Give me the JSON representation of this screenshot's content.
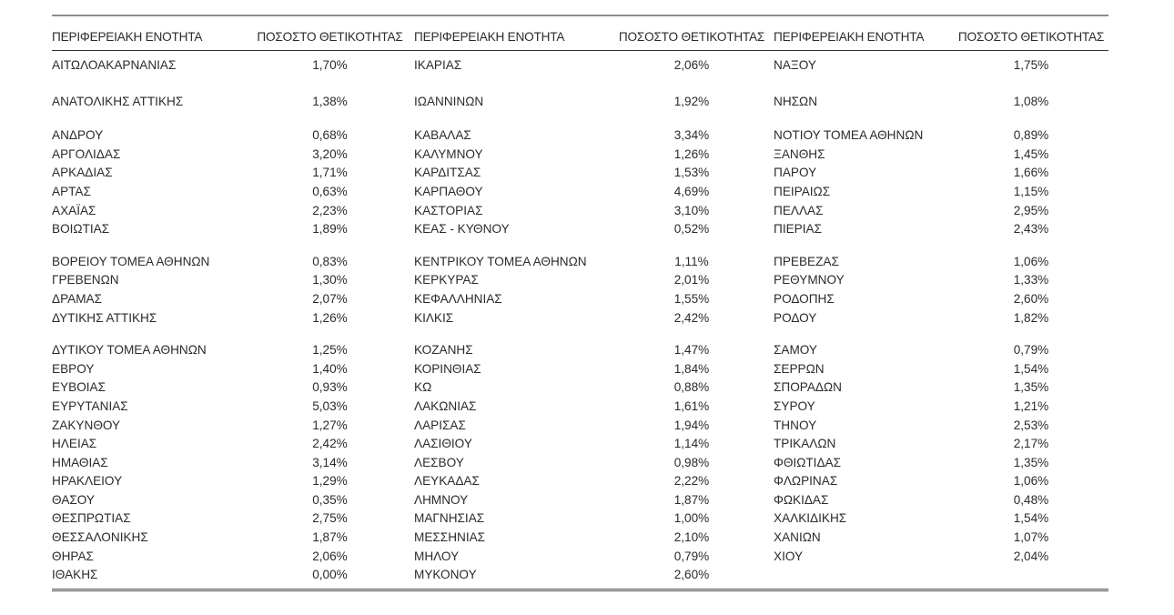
{
  "table": {
    "headers": [
      "ΠΕΡΙΦΕΡΕΙΑΚΗ ΕΝΟΤΗΤΑ",
      "ΠΟΣΟΣΤΟ ΘΕΤΙΚΟΤΗΤΑΣ",
      "ΠΕΡΙΦΕΡΕΙΑΚΗ ΕΝΟΤΗΤΑ",
      "ΠΟΣΟΣΤΟ ΘΕΤΙΚΟΤΗΤΑΣ",
      "ΠΕΡΙΦΕΡΕΙΑΚΗ ΕΝΟΤΗΤΑ",
      "ΠΟΣΟΣΤΟ ΘΕΤΙΚΟΤΗΤΑΣ"
    ],
    "rows": [
      [
        "ΑΙΤΩΛΟΑΚΑΡΝΑΝΙΑΣ",
        "1,70%",
        "ΙΚΑΡΙΑΣ",
        "2,06%",
        "ΝΑΞΟΥ",
        "1,75%"
      ],
      [
        "ΑΝΑΤΟΛΙΚΗΣ ΑΤΤΙΚΗΣ",
        "1,38%",
        "ΙΩΑΝΝΙΝΩΝ",
        "1,92%",
        "ΝΗΣΩΝ",
        "1,08%"
      ],
      [
        "ΑΝΔΡΟΥ",
        "0,68%",
        "ΚΑΒΑΛΑΣ",
        "3,34%",
        "ΝΟΤΙΟΥ ΤΟΜΕΑ ΑΘΗΝΩΝ",
        "0,89%"
      ],
      [
        "ΑΡΓΟΛΙΔΑΣ",
        "3,20%",
        "ΚΑΛΥΜΝΟΥ",
        "1,26%",
        "ΞΑΝΘΗΣ",
        "1,45%"
      ],
      [
        "ΑΡΚΑΔΙΑΣ",
        "1,71%",
        "ΚΑΡΔΙΤΣΑΣ",
        "1,53%",
        "ΠΑΡΟΥ",
        "1,66%"
      ],
      [
        "ΑΡΤΑΣ",
        "0,63%",
        "ΚΑΡΠΑΘΟΥ",
        "4,69%",
        "ΠΕΙΡΑΙΩΣ",
        "1,15%"
      ],
      [
        "ΑΧΑΪΑΣ",
        "2,23%",
        "ΚΑΣΤΟΡΙΑΣ",
        "3,10%",
        "ΠΕΛΛΑΣ",
        "2,95%"
      ],
      [
        "ΒΟΙΩΤΙΑΣ",
        "1,89%",
        "ΚΕΑΣ - ΚΥΘΝΟΥ",
        "0,52%",
        "ΠΙΕΡΙΑΣ",
        "2,43%"
      ],
      [
        "ΒΟΡΕΙΟΥ ΤΟΜΕΑ ΑΘΗΝΩΝ",
        "0,83%",
        "ΚΕΝΤΡΙΚΟΥ ΤΟΜΕΑ ΑΘΗΝΩΝ",
        "1,11%",
        "ΠΡΕΒΕΖΑΣ",
        "1,06%"
      ],
      [
        "ΓΡΕΒΕΝΩΝ",
        "1,30%",
        "ΚΕΡΚΥΡΑΣ",
        "2,01%",
        "ΡΕΘΥΜΝΟΥ",
        "1,33%"
      ],
      [
        "ΔΡΑΜΑΣ",
        "2,07%",
        "ΚΕΦΑΛΛΗΝΙΑΣ",
        "1,55%",
        "ΡΟΔΟΠΗΣ",
        "2,60%"
      ],
      [
        "ΔΥΤΙΚΗΣ ΑΤΤΙΚΗΣ",
        "1,26%",
        "ΚΙΛΚΙΣ",
        "2,42%",
        "ΡΟΔΟΥ",
        "1,82%"
      ],
      [
        "ΔΥΤΙΚΟΥ ΤΟΜΕΑ ΑΘΗΝΩΝ",
        "1,25%",
        "ΚΟΖΑΝΗΣ",
        "1,47%",
        "ΣΑΜΟΥ",
        "0,79%"
      ],
      [
        "ΕΒΡΟΥ",
        "1,40%",
        "ΚΟΡΙΝΘΙΑΣ",
        "1,84%",
        "ΣΕΡΡΩΝ",
        "1,54%"
      ],
      [
        "ΕΥΒΟΙΑΣ",
        "0,93%",
        "ΚΩ",
        "0,88%",
        "ΣΠΟΡΑΔΩΝ",
        "1,35%"
      ],
      [
        "ΕΥΡΥΤΑΝΙΑΣ",
        "5,03%",
        "ΛΑΚΩΝΙΑΣ",
        "1,61%",
        "ΣΥΡΟΥ",
        "1,21%"
      ],
      [
        "ΖΑΚΥΝΘΟΥ",
        "1,27%",
        "ΛΑΡΙΣΑΣ",
        "1,94%",
        "ΤΗΝΟΥ",
        "2,53%"
      ],
      [
        "ΗΛΕΙΑΣ",
        "2,42%",
        "ΛΑΣΙΘΙΟΥ",
        "1,14%",
        "ΤΡΙΚΑΛΩΝ",
        "2,17%"
      ],
      [
        "ΗΜΑΘΙΑΣ",
        "3,14%",
        "ΛΕΣΒΟΥ",
        "0,98%",
        "ΦΘΙΩΤΙΔΑΣ",
        "1,35%"
      ],
      [
        "ΗΡΑΚΛΕΙΟΥ",
        "1,29%",
        "ΛΕΥΚΑΔΑΣ",
        "2,22%",
        "ΦΛΩΡΙΝΑΣ",
        "1,06%"
      ],
      [
        "ΘΑΣΟΥ",
        "0,35%",
        "ΛΗΜΝΟΥ",
        "1,87%",
        "ΦΩΚΙΔΑΣ",
        "0,48%"
      ],
      [
        "ΘΕΣΠΡΩΤΙΑΣ",
        "2,75%",
        "ΜΑΓΝΗΣΙΑΣ",
        "1,00%",
        "ΧΑΛΚΙΔΙΚΗΣ",
        "1,54%"
      ],
      [
        "ΘΕΣΣΑΛΟΝΙΚΗΣ",
        "1,87%",
        "ΜΕΣΣΗΝΙΑΣ",
        "2,10%",
        "ΧΑΝΙΩΝ",
        "1,07%"
      ],
      [
        "ΘΗΡΑΣ",
        "2,06%",
        "ΜΗΛΟΥ",
        "0,79%",
        "ΧΙΟΥ",
        "2,04%"
      ],
      [
        "ΙΘΑΚΗΣ",
        "0,00%",
        "ΜΥΚΟΝΟΥ",
        "2,60%",
        "",
        ""
      ]
    ]
  },
  "colors": {
    "text": "#2b2b2b",
    "top_rule": "#8c8c8c",
    "header_rule": "#333333",
    "bottom_rule": "#4a4a4a",
    "background": "#ffffff"
  }
}
